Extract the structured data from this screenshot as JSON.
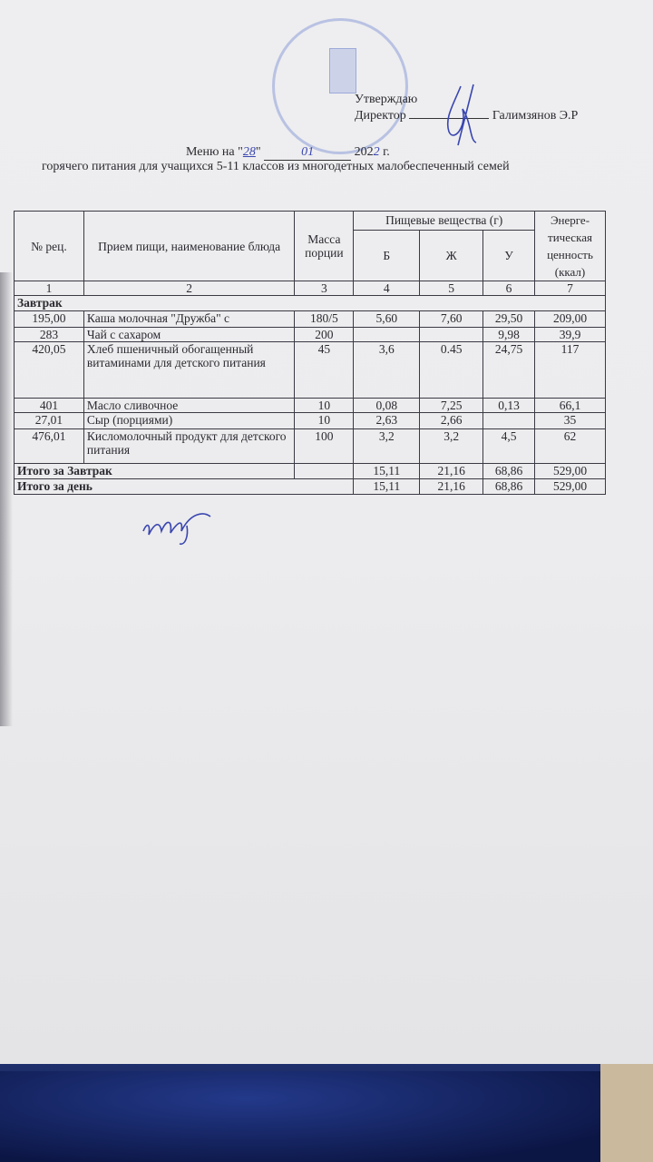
{
  "approval": {
    "approve": "Утверждаю",
    "position": "Директор",
    "name": "Галимзянов Э.Р"
  },
  "title": {
    "prefix": "Меню на \"",
    "day": "28",
    "mid": "\"",
    "month": "01",
    "year_prefix": "202",
    "year_hand": "2",
    "suffix": " г.",
    "subtitle": "горячего питания для учащихся 5-11 классов из многодетных малобеспеченный семей"
  },
  "table": {
    "headers": {
      "num": "№ рец.",
      "dish": "Прием пищи, наименование блюда",
      "mass": "Масса порции",
      "nutrients": "Пищевые вещества (г)",
      "b": "Б",
      "zh": "Ж",
      "u": "У",
      "energy": "Энерге-тическая ценность (ккал)"
    },
    "col_numbers": [
      "1",
      "2",
      "3",
      "4",
      "5",
      "6",
      "7"
    ],
    "section": "Завтрак",
    "rows": [
      [
        "195,00",
        "Каша молочная \"Дружба\" с",
        "180/5",
        "5,60",
        "7,60",
        "29,50",
        "209,00"
      ],
      [
        "283",
        "Чай с сахаром",
        "200",
        "",
        "",
        "9,98",
        "39,9"
      ],
      [
        "420,05",
        "Хлеб пшеничный обогащенный витаминами для детского питания",
        "45",
        "3,6",
        "0.45",
        "24,75",
        "117"
      ],
      [
        "401",
        "Масло сливочное",
        "10",
        "0,08",
        "7,25",
        "0,13",
        "66,1"
      ],
      [
        "27,01",
        "Сыр (порциями)",
        "10",
        "2,63",
        "2,66",
        "",
        "35"
      ],
      [
        "476,01",
        "Кисломолочный продукт для детского питания",
        "100",
        "3,2",
        "3,2",
        "4,5",
        "62"
      ]
    ],
    "total_breakfast": {
      "label": "Итого за Завтрак",
      "b": "15,11",
      "zh": "21,16",
      "u": "68,86",
      "energy": "529,00"
    },
    "total_day": {
      "label": "Итого за день",
      "b": "15,11",
      "zh": "21,16",
      "u": "68,86",
      "energy": "529,00"
    }
  }
}
